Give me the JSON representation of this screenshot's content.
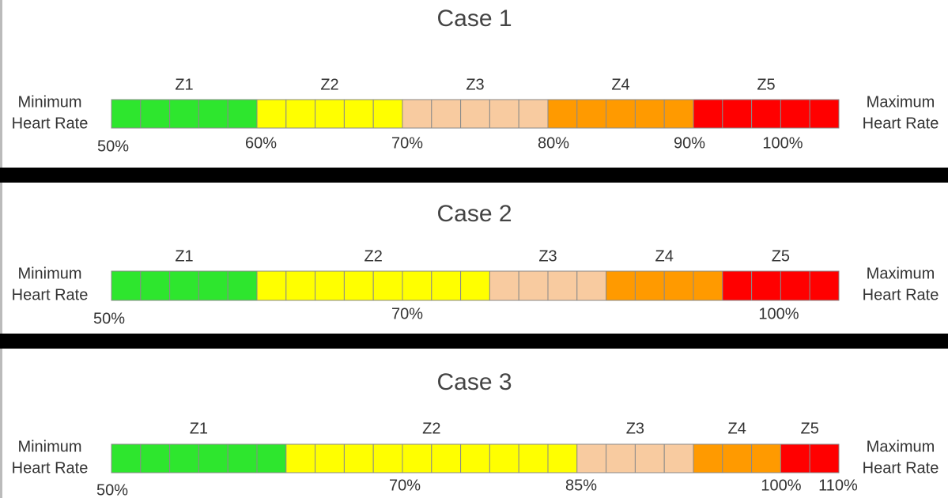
{
  "cases": [
    {
      "title": "Case 1",
      "min_label": [
        "Minimum",
        "Heart Rate"
      ],
      "max_label": [
        "Maximum",
        "Heart Rate"
      ],
      "zones": [
        {
          "label": "Z1",
          "color": "#2ee62e",
          "cells": 5
        },
        {
          "label": "Z2",
          "color": "#ffff00",
          "cells": 5
        },
        {
          "label": "Z3",
          "color": "#f8cba0",
          "cells": 5
        },
        {
          "label": "Z4",
          "color": "#ff9a00",
          "cells": 5
        },
        {
          "label": "Z5",
          "color": "#ff0000",
          "cells": 5
        }
      ],
      "percent_labels": [
        "50%",
        "60%",
        "70%",
        "80%",
        "90%",
        "100%"
      ]
    },
    {
      "title": "Case 2",
      "min_label": [
        "Minimum",
        "Heart Rate"
      ],
      "max_label": [
        "Maximum",
        "Heart Rate"
      ],
      "zones": [
        {
          "label": "Z1",
          "color": "#2ee62e",
          "cells": 5
        },
        {
          "label": "Z2",
          "color": "#ffff00",
          "cells": 8
        },
        {
          "label": "Z3",
          "color": "#f8cba0",
          "cells": 4
        },
        {
          "label": "Z4",
          "color": "#ff9a00",
          "cells": 4
        },
        {
          "label": "Z5",
          "color": "#ff0000",
          "cells": 4
        }
      ],
      "percent_labels": [
        "50%",
        "70%",
        "100%"
      ]
    },
    {
      "title": "Case 3",
      "min_label": [
        "Minimum",
        "Heart Rate"
      ],
      "max_label": [
        "Maximum",
        "Heart Rate"
      ],
      "zones": [
        {
          "label": "Z1",
          "color": "#2ee62e",
          "cells": 6
        },
        {
          "label": "Z2",
          "color": "#ffff00",
          "cells": 10
        },
        {
          "label": "Z3",
          "color": "#f8cba0",
          "cells": 4
        },
        {
          "label": "Z4",
          "color": "#ff9a00",
          "cells": 3
        },
        {
          "label": "Z5",
          "color": "#ff0000",
          "cells": 2
        }
      ],
      "percent_labels": [
        "50%",
        "70%",
        "85%",
        "100%",
        "110%"
      ]
    }
  ]
}
